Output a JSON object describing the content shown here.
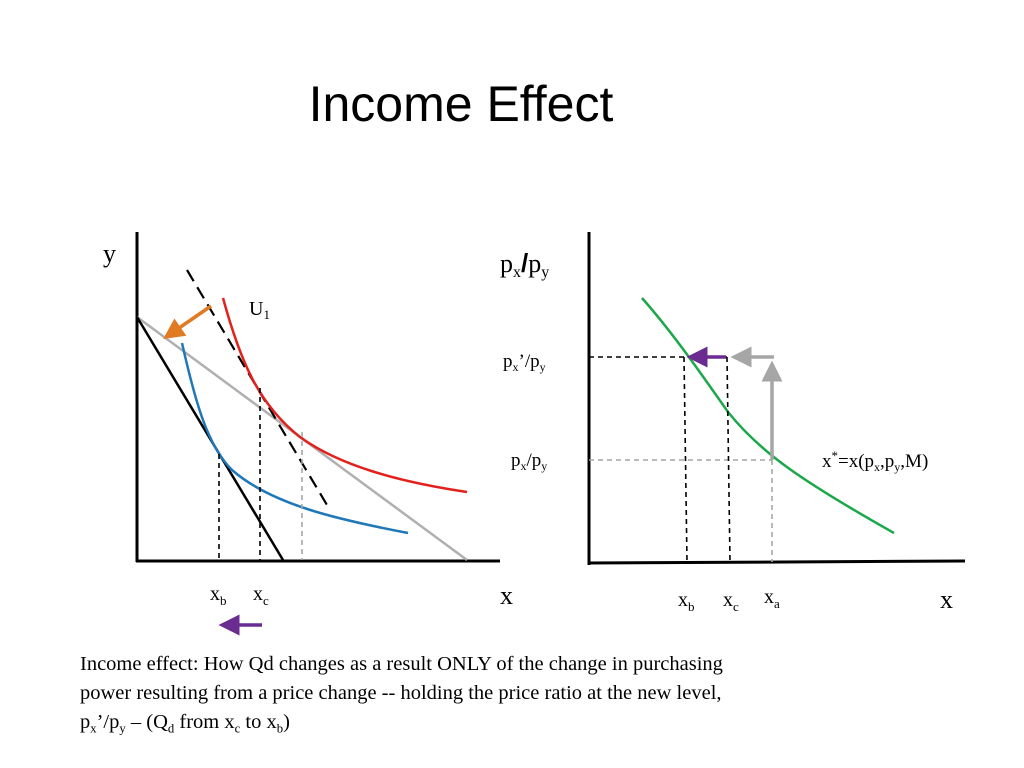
{
  "title": "Income Effect",
  "colors": {
    "indifference_curve_high": "#e2211c",
    "indifference_curve_low": "#1f78b8",
    "demand_curve": "#1aa84a",
    "income_arrow": "#e07a23",
    "shift_arrow": "#6a2c91",
    "price_arrow": "#a6a6a6",
    "new_budget_line": "#000000",
    "old_budget_line": "#b0b0b0",
    "axis": "#000000"
  },
  "left_panel": {
    "y_axis_label": "y",
    "x_axis_label": "x",
    "curve_label": {
      "main": "U",
      "sub": "1"
    },
    "tick_xb": {
      "main": "x",
      "sub": "b"
    },
    "tick_xc": {
      "main": "x",
      "sub": "c"
    }
  },
  "right_panel": {
    "y_axis_label": {
      "p1": "p",
      "s1": "x",
      "slash": "/",
      "p2": "p",
      "s2": "y"
    },
    "x_axis_label": "x",
    "price_new": {
      "p1": "p",
      "s1": "x",
      "prime": "’/",
      "p2": "p",
      "s2": "y"
    },
    "price_old": {
      "p1": "p",
      "s1": "x",
      "slash": "/",
      "p2": "p",
      "s2": "y"
    },
    "demand_label": {
      "a": "x",
      "sup": "*",
      "b": "=x(p",
      "s1": "x",
      "c": ",p",
      "s2": "y",
      "d": ",M)"
    },
    "tick_xb": {
      "main": "x",
      "sub": "b"
    },
    "tick_xc": {
      "main": "x",
      "sub": "c"
    },
    "tick_xa": {
      "main": "x",
      "sub": "a"
    }
  },
  "caption": {
    "line1": "Income effect: How Qd changes as a result ONLY of the change in purchasing",
    "line2": "power resulting from a price change -- holding the price ratio at the new level,",
    "line3": {
      "p1": "p",
      "s1": "x",
      "t1": "’/",
      "p2": "p",
      "s2": "y",
      "t2": " – (Q",
      "s3": "d",
      "t3": " from x",
      "s4": "c",
      "t4": " to x",
      "s5": "b",
      "t5": ")"
    }
  }
}
